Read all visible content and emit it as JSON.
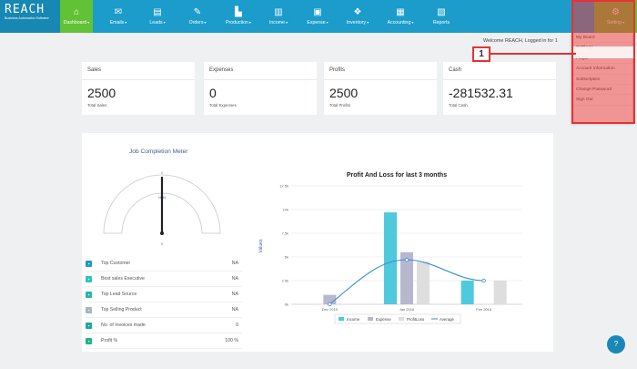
{
  "brand": {
    "logo": "REACH",
    "tagline": "Business Automation Software"
  },
  "nav": [
    {
      "label": "Dashboard",
      "icon": "dashboard-icon",
      "glyph": "⌂",
      "active": true
    },
    {
      "label": "Emails",
      "icon": "envelope-icon",
      "glyph": "✉"
    },
    {
      "label": "Leads",
      "icon": "leads-icon",
      "glyph": "▤"
    },
    {
      "label": "Orders",
      "icon": "wrench-icon",
      "glyph": "✎"
    },
    {
      "label": "Production",
      "icon": "factory-icon",
      "glyph": "▙"
    },
    {
      "label": "Income",
      "icon": "bar-chart-icon",
      "glyph": "▥"
    },
    {
      "label": "Expense",
      "icon": "money-icon",
      "glyph": "▣"
    },
    {
      "label": "Inventory",
      "icon": "cubes-icon",
      "glyph": "❖"
    },
    {
      "label": "Accounting",
      "icon": "calculator-icon",
      "glyph": "▦"
    },
    {
      "label": "Reports",
      "icon": "report-icon",
      "glyph": "▧"
    }
  ],
  "setting": {
    "label": "Setting",
    "icon": "gear-icon",
    "glyph": "⚙"
  },
  "welcome": "Welcome REACH, Logged in for 1",
  "dropdown": [
    "My Board",
    "Settings",
    "Plugin",
    "Account Information",
    "Subscription",
    "Change Password",
    "Sign Out"
  ],
  "marker": "1",
  "cards": [
    {
      "title": "Sales",
      "value": "2500",
      "sub": "Total Sales"
    },
    {
      "title": "Expenses",
      "value": "0",
      "sub": "Total Expenses"
    },
    {
      "title": "Profits",
      "value": "2500",
      "sub": "Total Profits"
    },
    {
      "title": "Cash",
      "value": "-281532.31",
      "sub": "Total Cash"
    }
  ],
  "gauge": {
    "title": "Job Completion Meter",
    "min": "0",
    "max": "0",
    "value": "0",
    "readout": "NaN"
  },
  "info": [
    {
      "label": "Top Customer",
      "value": "NA",
      "color": "#1b9ccb"
    },
    {
      "label": "Best sales Executive",
      "value": "NA",
      "color": "#2ec4c4"
    },
    {
      "label": "Top Lead Source",
      "value": "NA",
      "color": "#2bb5a5"
    },
    {
      "label": "Top Selling Product",
      "value": "NA",
      "color": "#aab4bc"
    },
    {
      "label": "No. of Invoices made",
      "value": "0",
      "color": "#1fa89a"
    },
    {
      "label": "Profit %",
      "value": "100 %",
      "color": "#1fb585"
    }
  ],
  "chart_data": {
    "type": "bar",
    "title": "Profit And Loss for last 3 months",
    "ylabel": "Values",
    "categories": [
      "Dec 2015",
      "Jan 2016",
      "Feb 2016"
    ],
    "yticks": [
      "0k",
      "2.5k",
      "5k",
      "7.5k",
      "10k",
      "12.5k"
    ],
    "ylim": [
      0,
      12500
    ],
    "series": [
      {
        "name": "Income",
        "color": "#4fc9dc",
        "values": [
          0,
          9700,
          2500
        ]
      },
      {
        "name": "Expense",
        "color": "#b7b7cf",
        "values": [
          1000,
          5500,
          0
        ]
      },
      {
        "name": "ProfitLoss",
        "color": "#dedede",
        "values": [
          0,
          4500,
          2500
        ]
      }
    ],
    "line": {
      "name": "Average",
      "color": "#3a8fd8",
      "values": [
        0,
        4700,
        2500
      ]
    }
  }
}
